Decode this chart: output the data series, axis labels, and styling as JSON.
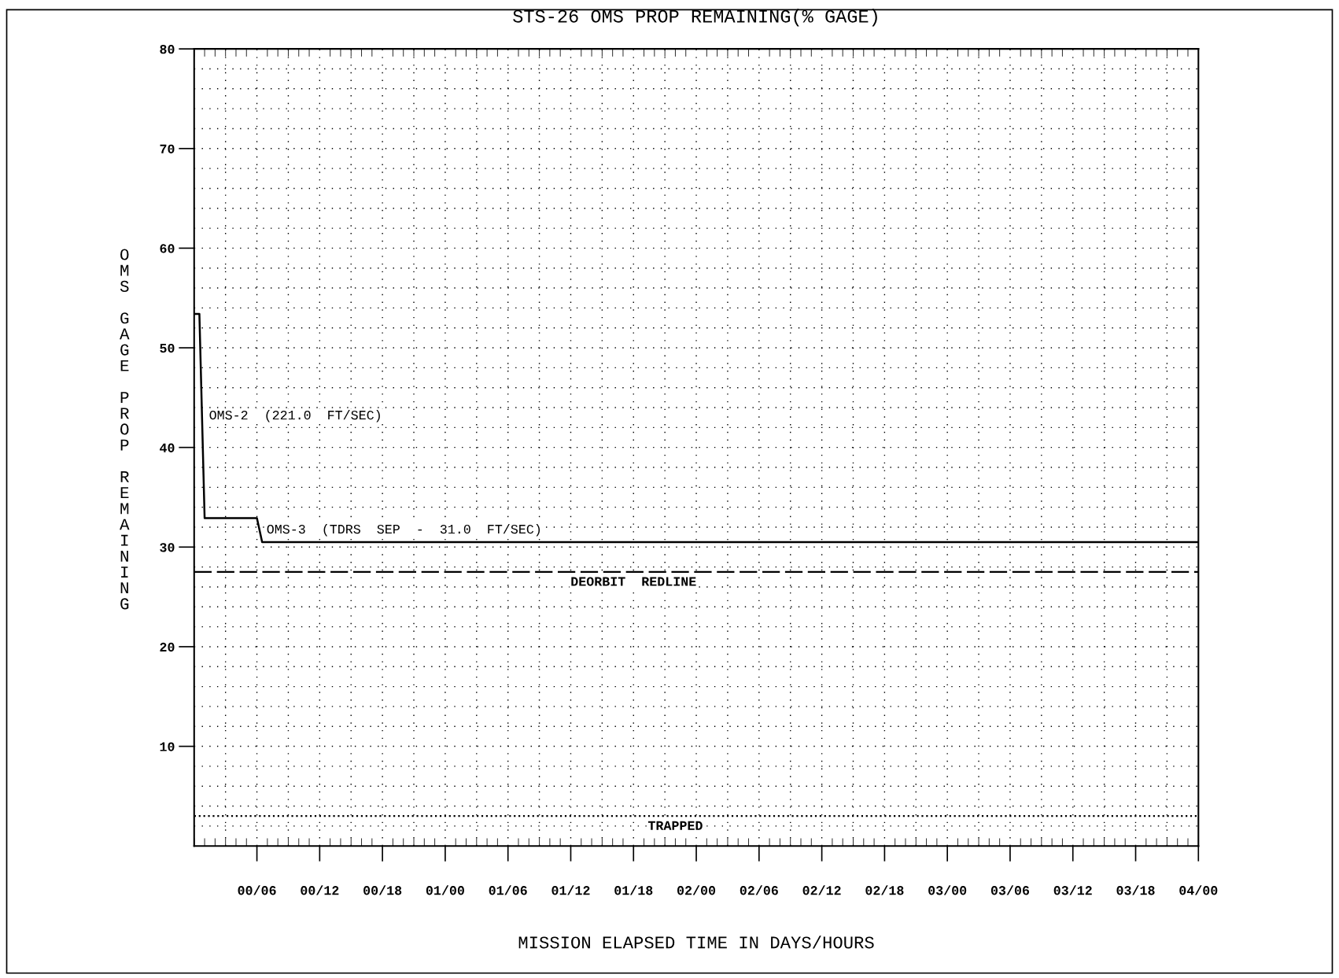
{
  "chart_data": {
    "type": "line",
    "title": "STS-26 OMS PROP REMAINING(% GAGE)",
    "xlabel": "MISSION ELAPSED TIME IN DAYS/HOURS",
    "ylabel": "OMS GAGE PROP REMAINING",
    "categories": [
      null,
      null,
      null,
      null,
      null,
      null,
      null,
      null,
      null,
      null,
      null,
      null,
      "00/06",
      null,
      null,
      null,
      null,
      null,
      null,
      null,
      null,
      null,
      null,
      null,
      "00/12",
      null,
      null,
      null,
      null,
      null,
      null,
      null,
      null,
      null,
      null,
      null,
      "00/18",
      null,
      null,
      null,
      null,
      null,
      null,
      null,
      null,
      null,
      null,
      null,
      "01/00",
      null,
      null,
      null,
      null,
      null,
      null,
      null,
      null,
      null,
      null,
      null,
      "01/06",
      null,
      null,
      null,
      null,
      null,
      null,
      null,
      null,
      null,
      null,
      null,
      "01/12",
      null,
      null,
      null,
      null,
      null,
      null,
      null,
      null,
      null,
      null,
      null,
      "01/18",
      null,
      null,
      null,
      null,
      null,
      null,
      null,
      null,
      null,
      null,
      null,
      "02/00",
      null,
      null,
      null,
      null,
      null,
      null,
      null,
      null,
      null,
      null,
      null,
      "02/06",
      null,
      null,
      null,
      null,
      null,
      null,
      null,
      null,
      null,
      null,
      null,
      "02/12",
      null,
      null,
      null,
      null,
      null,
      null,
      null,
      null,
      null,
      null,
      null,
      "02/18",
      null,
      null,
      null,
      null,
      null,
      null,
      null,
      null,
      null,
      null,
      null,
      "03/00",
      null,
      null,
      null,
      null,
      null,
      null,
      null,
      null,
      null,
      null,
      null,
      "03/06",
      null,
      null,
      null,
      null,
      null,
      null,
      null,
      null,
      null,
      null,
      null,
      "03/12",
      null,
      null,
      null,
      null,
      null,
      null,
      null,
      null,
      null,
      null,
      null,
      "03/18",
      null,
      null,
      null,
      null,
      null,
      null,
      null,
      null,
      null,
      null,
      null,
      "04/00"
    ],
    "series": [
      {
        "color": "#000000",
        "values": [
          53.4,
          53.4,
          32.9,
          32.9,
          32.9,
          32.9,
          32.9,
          32.9,
          32.9,
          32.9,
          32.9,
          32.9,
          32.9,
          30.5,
          30.5,
          30.5,
          30.5,
          30.5,
          30.5,
          30.5,
          30.5,
          30.5,
          30.5,
          30.5,
          30.5,
          30.5,
          30.5,
          30.5,
          30.5,
          30.5,
          30.5,
          30.5,
          30.5,
          30.5,
          30.5,
          30.5,
          30.5,
          30.5,
          30.5,
          30.5,
          30.5,
          30.5,
          30.5,
          30.5,
          30.5,
          30.5,
          30.5,
          30.5,
          30.5,
          30.5,
          30.5,
          30.5,
          30.5,
          30.5,
          30.5,
          30.5,
          30.5,
          30.5,
          30.5,
          30.5,
          30.5,
          30.5,
          30.5,
          30.5,
          30.5,
          30.5,
          30.5,
          30.5,
          30.5,
          30.5,
          30.5,
          30.5,
          30.5,
          30.5,
          30.5,
          30.5,
          30.5,
          30.5,
          30.5,
          30.5,
          30.5,
          30.5,
          30.5,
          30.5,
          30.5,
          30.5,
          30.5,
          30.5,
          30.5,
          30.5,
          30.5,
          30.5,
          30.5,
          30.5,
          30.5,
          30.5,
          30.5,
          30.5,
          30.5,
          30.5,
          30.5,
          30.5,
          30.5,
          30.5,
          30.5,
          30.5,
          30.5,
          30.5,
          30.5,
          30.5,
          30.5,
          30.5,
          30.5,
          30.5,
          30.5,
          30.5,
          30.5,
          30.5,
          30.5,
          30.5,
          30.5,
          30.5,
          30.5,
          30.5,
          30.5,
          30.5,
          30.5,
          30.5,
          30.5,
          30.5,
          30.5,
          30.5,
          30.5,
          30.5,
          30.5,
          30.5,
          30.5,
          30.5,
          30.5,
          30.5,
          30.5,
          30.5,
          30.5,
          30.5,
          30.5,
          30.5,
          30.5,
          30.5,
          30.5,
          30.5,
          30.5,
          30.5,
          30.5,
          30.5,
          30.5,
          30.5,
          30.5,
          30.5,
          30.5,
          30.5,
          30.5,
          30.5,
          30.5,
          30.5,
          30.5,
          30.5,
          30.5,
          30.5,
          30.5,
          30.5,
          30.5,
          30.5,
          30.5,
          30.5,
          30.5,
          30.5,
          30.5,
          30.5,
          30.5,
          30.5,
          30.5,
          30.5,
          30.5,
          30.5,
          30.5,
          30.5,
          30.5,
          30.5,
          30.5,
          30.5,
          30.5,
          30.5,
          30.5
        ]
      }
    ],
    "ylim": [
      0,
      80
    ],
    "yticks": [
      10,
      20,
      30,
      40,
      50,
      60,
      70,
      80
    ],
    "ref_lines": [
      {
        "axis": "y",
        "value": 27.5,
        "label": "DEORBIT  REDLINE",
        "line_style": "dashed",
        "color": "#000000"
      },
      {
        "axis": "y",
        "value": 3.0,
        "label": "TRAPPED",
        "line_style": "dotted",
        "color": "#000000"
      }
    ],
    "annotations": [
      "OMS-2  (221.0  FT/SEC)",
      "OMS-3  (TDRS  SEP  -  31.0  FT/SEC)"
    ],
    "grid": true,
    "line_style": "solid",
    "marker": "none"
  }
}
